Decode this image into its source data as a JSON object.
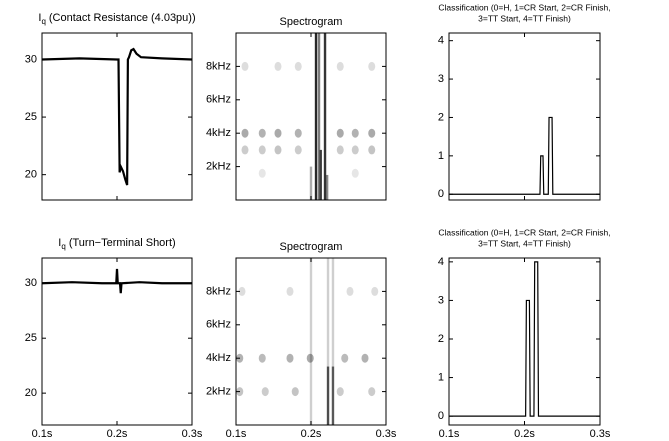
{
  "chart_data": [
    {
      "type": "line",
      "title": {
        "symbol": "I",
        "subscript": "q",
        "text": "(Contact Resistance (4.03pu))"
      },
      "xlim": [
        0.1,
        0.3
      ],
      "xticks": [
        0.1,
        0.2,
        0.3
      ],
      "ylim": [
        17.8,
        32.3
      ],
      "yticks": [
        20,
        25,
        30
      ],
      "series": [
        {
          "color": "#000000",
          "x": [
            0.1,
            0.15,
            0.2,
            0.202,
            0.2035,
            0.205,
            0.208,
            0.211,
            0.2135,
            0.2145,
            0.216,
            0.219,
            0.222,
            0.226,
            0.232,
            0.26,
            0.3
          ],
          "values": [
            30,
            30.1,
            30,
            30,
            20.2,
            20.7,
            20.3,
            19.6,
            19.1,
            30,
            30.2,
            30.8,
            30.9,
            30.5,
            30.2,
            30.1,
            30
          ]
        }
      ]
    },
    {
      "type": "spectrogram",
      "title": "Spectrogram",
      "xlim": [
        0.1,
        0.3
      ],
      "xticks": [
        0.1,
        0.2,
        0.3
      ],
      "ylim": [
        0,
        10
      ],
      "yticks": [
        {
          "value": 2,
          "label": "2kHz"
        },
        {
          "value": 4,
          "label": "4kHz"
        },
        {
          "value": 6,
          "label": "6kHz"
        },
        {
          "value": 8,
          "label": "8kHz"
        }
      ],
      "streaks": {
        "x": [
          0.2,
          0.2067,
          0.2107,
          0.213,
          0.2187,
          0.2215
        ],
        "ymin": [
          0,
          0,
          0,
          0,
          0,
          0
        ],
        "ymax": [
          2,
          10,
          10,
          3,
          10,
          1.5
        ],
        "values": [
          0.35,
          0.9,
          0.55,
          0.8,
          0.85,
          0.5
        ]
      },
      "spots": {
        "x": [
          0.112,
          0.135,
          0.156,
          0.183,
          0.239,
          0.259,
          0.281,
          0.112,
          0.135,
          0.156,
          0.183,
          0.239,
          0.259,
          0.281,
          0.112,
          0.156,
          0.183,
          0.239,
          0.281,
          0.135,
          0.259
        ],
        "y": [
          4,
          4,
          4,
          4,
          4,
          4,
          4,
          3,
          3,
          3,
          3,
          3,
          3,
          3,
          8,
          8,
          8,
          8,
          8,
          1.6,
          1.6
        ],
        "values": [
          0.5,
          0.45,
          0.5,
          0.45,
          0.5,
          0.45,
          0.5,
          0.3,
          0.3,
          0.35,
          0.3,
          0.3,
          0.3,
          0.35,
          0.2,
          0.2,
          0.2,
          0.2,
          0.2,
          0.15,
          0.15
        ]
      }
    },
    {
      "type": "line",
      "title": [
        "Classification (0=H, 1=CR Start, 2=CR Finish,",
        "3=TT Start, 4=TT Finish)"
      ],
      "xlim": [
        0.1,
        0.3
      ],
      "xticks": [
        0.1,
        0.2,
        0.3
      ],
      "ylim": [
        -0.15,
        4.2
      ],
      "yticks": [
        0,
        1,
        2,
        3,
        4
      ],
      "series": [
        {
          "color": "#000000",
          "x": [
            0.1,
            0.2205,
            0.2215,
            0.2245,
            0.2255,
            0.2315,
            0.2325,
            0.2365,
            0.2375,
            0.3
          ],
          "values": [
            0,
            0,
            1,
            1,
            0,
            0,
            2,
            2,
            0,
            0
          ]
        }
      ]
    },
    {
      "type": "line",
      "title": {
        "symbol": "I",
        "subscript": "q",
        "text": "(Turn−Terminal Short)"
      },
      "xlim": [
        0.1,
        0.3
      ],
      "xticks": [
        {
          "value": 0.1,
          "label": "0.1s"
        },
        {
          "value": 0.2,
          "label": "0.2s"
        },
        {
          "value": 0.3,
          "label": "0.3s"
        }
      ],
      "ylim": [
        17.1,
        32.3
      ],
      "yticks": [
        20,
        25,
        30
      ],
      "series": [
        {
          "color": "#000000",
          "x": [
            0.1,
            0.14,
            0.18,
            0.199,
            0.2,
            0.201,
            0.204,
            0.205,
            0.206,
            0.23,
            0.26,
            0.3
          ],
          "values": [
            30,
            30.1,
            30,
            30,
            31.3,
            30,
            30,
            29.1,
            30,
            30.1,
            30,
            30
          ]
        }
      ]
    },
    {
      "type": "spectrogram",
      "title": "Spectrogram",
      "xlim": [
        0.1,
        0.3
      ],
      "xticks": [
        {
          "value": 0.1,
          "label": "0.1s"
        },
        {
          "value": 0.2,
          "label": "0.2s"
        },
        {
          "value": 0.3,
          "label": "0.3s"
        }
      ],
      "ylim": [
        0,
        10
      ],
      "yticks": [
        {
          "value": 2,
          "label": "2kHz"
        },
        {
          "value": 4,
          "label": "4kHz"
        },
        {
          "value": 6,
          "label": "6kHz"
        },
        {
          "value": 8,
          "label": "8kHz"
        }
      ],
      "streaks": {
        "x": [
          0.2,
          0.2227,
          0.2293,
          0.2227,
          0.2293
        ],
        "ymin": [
          0,
          0,
          0,
          3.5,
          3.5
        ],
        "ymax": [
          10,
          3.5,
          3.5,
          10,
          10
        ],
        "values": [
          0.2,
          0.75,
          0.7,
          0.2,
          0.2
        ]
      },
      "spots": {
        "x": [
          0.105,
          0.135,
          0.172,
          0.199,
          0.245,
          0.272,
          0.105,
          0.139,
          0.179,
          0.239,
          0.281,
          0.108,
          0.172,
          0.252,
          0.285
        ],
        "y": [
          4,
          4,
          4,
          4,
          4,
          4,
          2,
          2,
          2,
          2,
          2,
          8,
          8,
          8,
          8
        ],
        "values": [
          0.45,
          0.4,
          0.45,
          0.5,
          0.4,
          0.45,
          0.35,
          0.3,
          0.35,
          0.3,
          0.3,
          0.2,
          0.2,
          0.2,
          0.2
        ]
      }
    },
    {
      "type": "line",
      "title": [
        "Classification (0=H, 1=CR Start, 2=CR Finish,",
        "3=TT Start, 4=TT Finish)"
      ],
      "xlim": [
        0.1,
        0.3
      ],
      "xticks": [
        {
          "value": 0.1,
          "label": "0.1s"
        },
        {
          "value": 0.2,
          "label": "0.2s"
        },
        {
          "value": 0.3,
          "label": "0.3s"
        }
      ],
      "ylim": [
        -0.23,
        4.1
      ],
      "yticks": [
        0,
        1,
        2,
        3,
        4
      ],
      "series": [
        {
          "color": "#000000",
          "x": [
            0.1,
            0.2015,
            0.2025,
            0.2065,
            0.2075,
            0.2125,
            0.2135,
            0.2175,
            0.2185,
            0.3
          ],
          "values": [
            0,
            0,
            3,
            3,
            0,
            0,
            4,
            4,
            0,
            0
          ]
        }
      ]
    }
  ]
}
